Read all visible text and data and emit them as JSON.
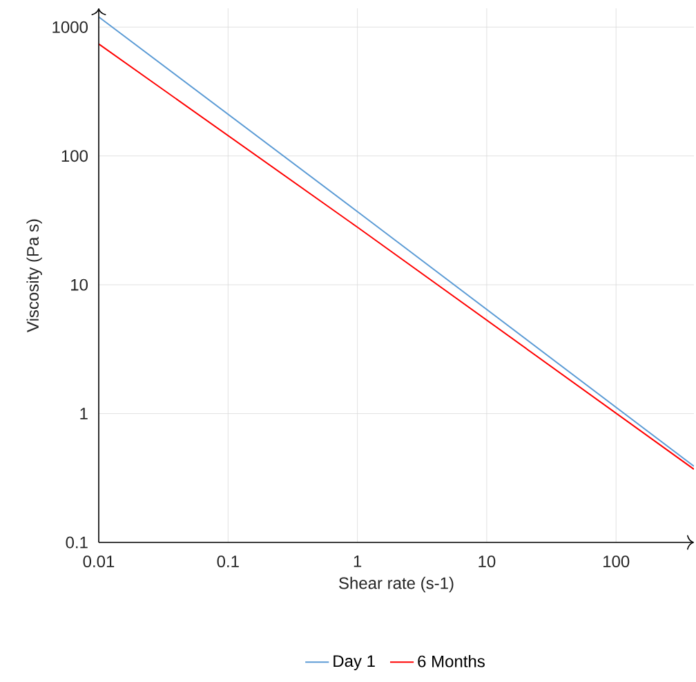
{
  "chart_data": {
    "type": "line",
    "xlabel": "Shear rate (s-1)",
    "ylabel": "Viscosity (Pa s)",
    "log": "xy",
    "xlim": [
      0.01,
      400
    ],
    "ylim": [
      0.1,
      1400
    ],
    "xticks": [
      0.01,
      0.1,
      1,
      10,
      100
    ],
    "yticks": [
      0.1,
      1,
      10,
      100,
      1000
    ],
    "grid": true,
    "legend": "bottom",
    "series": [
      {
        "name": "Day 1",
        "color": "#5b9bd5",
        "x": [
          0.01,
          1,
          400
        ],
        "values": [
          1200,
          37,
          0.39
        ]
      },
      {
        "name": "6 Months",
        "color": "#ff0000",
        "x": [
          0.01,
          1,
          400
        ],
        "values": [
          740,
          28,
          0.37
        ]
      }
    ]
  }
}
